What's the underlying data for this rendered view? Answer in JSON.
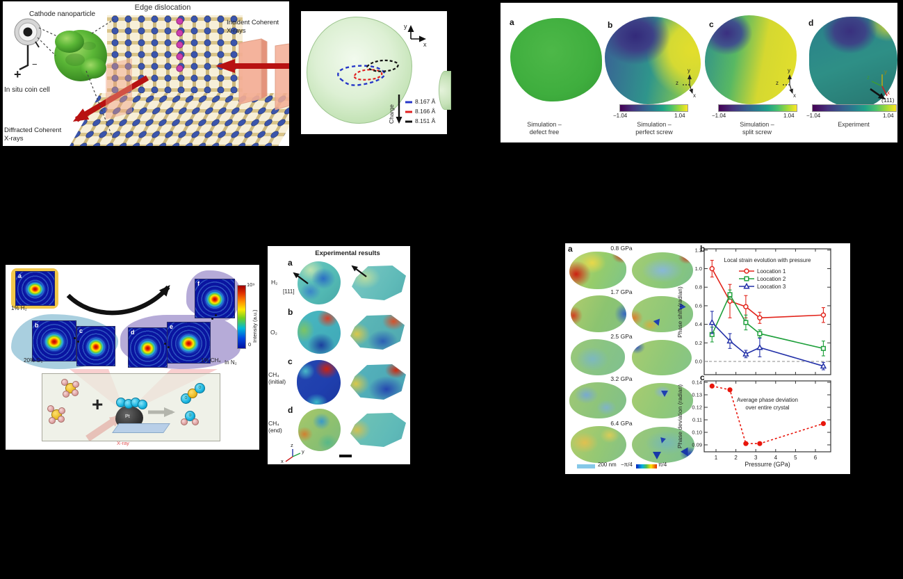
{
  "figure": {
    "background": "#000000"
  },
  "axes": {
    "x": "x",
    "y": "y",
    "z": "z"
  },
  "coin_cell_panel": {
    "title": "Edge dislocation",
    "cathode_label": "Cathode nanoparticle",
    "coin_cell_label": "In situ coin cell",
    "plus": "+",
    "minus": "−",
    "incident_line1": "Incident Coherent",
    "incident_line2": "X-rays",
    "diffracted_line1": "Diffracted Coherent",
    "diffracted_line2": "X-rays"
  },
  "loops_panel": {
    "charge_label": "Charge",
    "legend": [
      {
        "label": "8.167 Å",
        "color": "#2636c8"
      },
      {
        "label": "8.166 Å",
        "color": "#e02020"
      },
      {
        "label": "8.151 Å",
        "color": "#111111"
      }
    ]
  },
  "screw_panel": {
    "letters": [
      "a",
      "b",
      "c",
      "d"
    ],
    "captions": [
      {
        "line1": "Simulation –",
        "line2": "defect free"
      },
      {
        "line1": "Simulation –",
        "line2": "perfect screw"
      },
      {
        "line1": "Simulation –",
        "line2": "split screw"
      },
      {
        "line1": "Experiment",
        "line2": ""
      }
    ],
    "colorbar_min": "−1.04",
    "colorbar_max": "1.04",
    "miller_label": "(111)"
  },
  "catalysis_panel": {
    "pattern_letters": [
      "a",
      "b",
      "c",
      "d",
      "e",
      "f"
    ],
    "h2_label": "1% H₂",
    "o2_label": "20% O₂",
    "ch4_label": "1% CH₄",
    "n2_label": "In N₂",
    "colorbar_top": "10⁹",
    "colorbar_bottom": "0",
    "colorbar_label": "Intensity (a.u.)",
    "plus": "+",
    "pt_label": "Pt",
    "o_label": "O",
    "xray_label": "X-ray"
  },
  "experimental_panel": {
    "title": "Experimental results",
    "annotation_111": "[111]",
    "rows": [
      {
        "letter": "a",
        "label_line1": "H₂",
        "label_line2": ""
      },
      {
        "letter": "b",
        "label_line1": "O₂",
        "label_line2": ""
      },
      {
        "letter": "c",
        "label_line1": "CH₄",
        "label_line2": "(initial)"
      },
      {
        "letter": "d",
        "label_line1": "CH₄",
        "label_line2": "(end)"
      }
    ]
  },
  "pressure_panel": {
    "letter_a": "a",
    "letter_b": "b",
    "letter_c": "c",
    "pressures": [
      "0.8 GPa",
      "1.7 GPa",
      "2.5 GPa",
      "3.2 GPa",
      "6.4 GPa"
    ],
    "scalebar_label": "200 nm",
    "colorbar_min": "−π/4",
    "colorbar_max": "π/4"
  },
  "chart_data": [
    {
      "id": "local-strain",
      "type": "line",
      "title": "Local strain evolution with pressure",
      "ylabel": "Phase shift (radian)",
      "x": [
        0.8,
        1.7,
        2.5,
        3.2,
        6.4
      ],
      "xlim": [
        0.4,
        6.8
      ],
      "ylim": [
        -0.09,
        1.22
      ],
      "xticks": [
        1,
        2,
        3,
        4,
        5,
        6
      ],
      "yticks": [
        0.0,
        0.2,
        0.4,
        0.6,
        0.8,
        1.0,
        1.2
      ],
      "ytick_labels": [
        "0.0",
        "0.2",
        "0.4",
        "0.6",
        "0.8",
        "1.0",
        "1.2"
      ],
      "grid": false,
      "zero_line": true,
      "legend_position": "top-center",
      "series": [
        {
          "name": "Loocation 1",
          "color": "#e2231a",
          "marker": "circle-open",
          "values": [
            1.0,
            0.65,
            0.59,
            0.47,
            0.5
          ],
          "errors": [
            0.09,
            0.18,
            0.12,
            0.06,
            0.08
          ]
        },
        {
          "name": "Loocation 2",
          "color": "#1fa03c",
          "marker": "square-open",
          "values": [
            0.29,
            0.72,
            0.42,
            0.3,
            0.14
          ],
          "errors": [
            0.08,
            0.05,
            0.08,
            0.04,
            0.08
          ]
        },
        {
          "name": "Loocation 3",
          "color": "#2230a8",
          "marker": "triangle-open",
          "values": [
            0.42,
            0.22,
            0.08,
            0.15,
            -0.05
          ],
          "errors": [
            0.12,
            0.08,
            0.04,
            0.1,
            0.04
          ]
        }
      ]
    },
    {
      "id": "phase-deviation",
      "type": "line",
      "title": "Average phase deviation over entire crystal",
      "title_lines": [
        "Average phase deviation",
        "over entire crystal"
      ],
      "xlabel": "Pressurre (GPa)",
      "ylabel": "Phase deviation (radian)",
      "x": [
        0.8,
        1.7,
        2.5,
        3.2,
        6.4
      ],
      "xlim": [
        0.4,
        6.8
      ],
      "ylim": [
        0.086,
        0.142
      ],
      "xticks": [
        1,
        2,
        3,
        4,
        5,
        6
      ],
      "xtick_labels": [
        "1",
        "2",
        "3",
        "4",
        "5",
        "6"
      ],
      "yticks": [
        0.09,
        0.1,
        0.11,
        0.12,
        0.13,
        0.14
      ],
      "ytick_labels": [
        "0.09",
        "0.10",
        "0.11",
        "0.12",
        "0.13",
        "0.14"
      ],
      "grid": false,
      "series": [
        {
          "name": "Average phase deviation",
          "color": "#e8160c",
          "marker": "circle-filled",
          "linestyle": "dashed",
          "values": [
            0.137,
            0.134,
            0.091,
            0.091,
            0.107
          ]
        }
      ]
    }
  ]
}
